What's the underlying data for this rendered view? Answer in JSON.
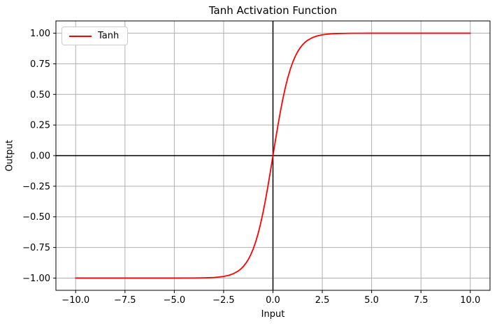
{
  "chart": {
    "title": "Tanh Activation Function",
    "xlabel": "Input",
    "ylabel": "Output",
    "legend": {
      "items": [
        {
          "label": "Tanh",
          "color": "#ff0000"
        }
      ]
    }
  },
  "chart_data": {
    "type": "line",
    "title": "Tanh Activation Function",
    "xlabel": "Input",
    "ylabel": "Output",
    "grid": true,
    "grid_color": "#b0b0b0",
    "background": "#ffffff",
    "spine_color": "#000000",
    "legend_position": "upper left",
    "xlim": [
      -11,
      11
    ],
    "ylim": [
      -1.1,
      1.1
    ],
    "xticks": {
      "values": [
        -10,
        -7.5,
        -5,
        -2.5,
        0,
        2.5,
        5,
        7.5,
        10
      ],
      "labels": [
        "−10.0",
        "−7.5",
        "−5.0",
        "−2.5",
        "0.0",
        "2.5",
        "5.0",
        "7.5",
        "10.0"
      ]
    },
    "yticks": {
      "values": [
        -1,
        -0.75,
        -0.5,
        -0.25,
        0,
        0.25,
        0.5,
        0.75,
        1
      ],
      "labels": [
        "−1.00",
        "−0.75",
        "−0.50",
        "−0.25",
        "0.00",
        "0.25",
        "0.50",
        "0.75",
        "1.00"
      ]
    },
    "reference_lines": {
      "axhline_y": 0,
      "axvline_x": 0,
      "color": "#000000"
    },
    "series": [
      {
        "name": "Tanh",
        "color": "#ff0000",
        "x": [
          -10,
          -9.75,
          -9.5,
          -9.25,
          -9,
          -8.75,
          -8.5,
          -8.25,
          -8,
          -7.75,
          -7.5,
          -7.25,
          -7,
          -6.75,
          -6.5,
          -6.25,
          -6,
          -5.75,
          -5.5,
          -5.25,
          -5,
          -4.75,
          -4.5,
          -4.25,
          -4,
          -3.75,
          -3.5,
          -3.25,
          -3,
          -2.75,
          -2.5,
          -2.25,
          -2,
          -1.75,
          -1.625,
          -1.5,
          -1.375,
          -1.25,
          -1.125,
          -1,
          -0.875,
          -0.75,
          -0.625,
          -0.5,
          -0.375,
          -0.25,
          -0.125,
          0,
          0.125,
          0.25,
          0.375,
          0.5,
          0.625,
          0.75,
          0.875,
          1,
          1.125,
          1.25,
          1.375,
          1.5,
          1.625,
          1.75,
          2,
          2.25,
          2.5,
          2.75,
          3,
          3.25,
          3.5,
          3.75,
          4,
          4.25,
          4.5,
          4.75,
          5,
          5.25,
          5.5,
          5.75,
          6,
          6.25,
          6.5,
          6.75,
          7,
          7.25,
          7.5,
          7.75,
          8,
          8.25,
          8.5,
          8.75,
          9,
          9.25,
          9.5,
          9.75,
          10
        ],
        "y": [
          -1,
          -1,
          -1,
          -1,
          -1,
          -1,
          -1,
          -1,
          -1,
          -1,
          -1,
          -1,
          -1,
          -1,
          -1,
          -0.99999,
          -0.99999,
          -0.99998,
          -0.99997,
          -0.99995,
          -0.99991,
          -0.99985,
          -0.99975,
          -0.99959,
          -0.99933,
          -0.99889,
          -0.99818,
          -0.997,
          -0.99505,
          -0.99186,
          -0.98661,
          -0.97803,
          -0.96403,
          -0.94138,
          -0.92535,
          -0.90515,
          -0.87983,
          -0.84828,
          -0.8093,
          -0.76159,
          -0.70391,
          -0.63515,
          -0.5546,
          -0.46212,
          -0.35836,
          -0.24492,
          -0.12435,
          0,
          0.12435,
          0.24492,
          0.35836,
          0.46212,
          0.5546,
          0.63515,
          0.70391,
          0.76159,
          0.8093,
          0.84828,
          0.87983,
          0.90515,
          0.92535,
          0.94138,
          0.96403,
          0.97803,
          0.98661,
          0.99186,
          0.99505,
          0.997,
          0.99818,
          0.99889,
          0.99933,
          0.99959,
          0.99975,
          0.99985,
          0.99991,
          0.99995,
          0.99997,
          0.99998,
          0.99999,
          0.99999,
          1,
          1,
          1,
          1,
          1,
          1,
          1,
          1,
          1,
          1,
          1,
          1,
          1,
          1,
          1
        ]
      }
    ]
  }
}
